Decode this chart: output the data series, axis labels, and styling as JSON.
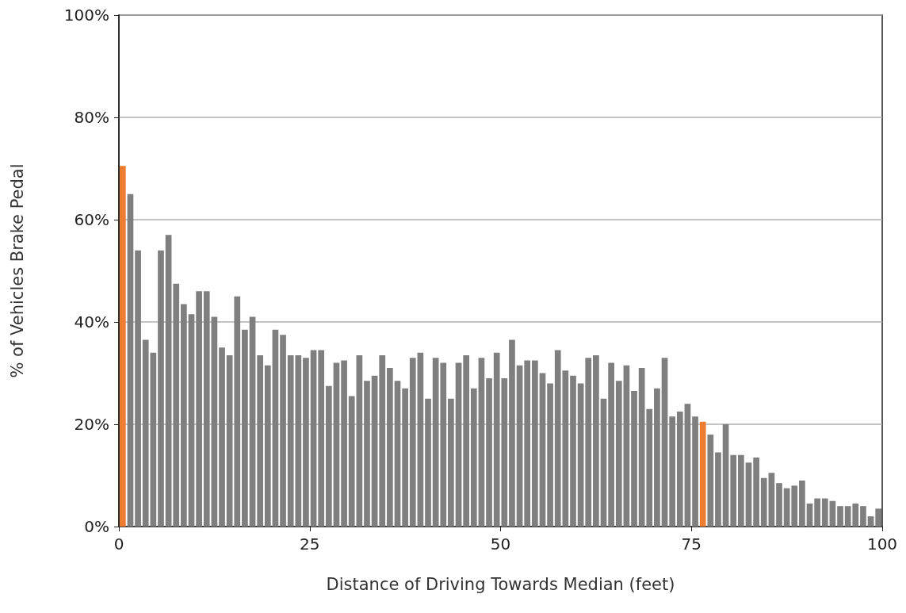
{
  "chart_data": {
    "type": "bar",
    "xlabel": "Distance of Driving Towards Median (feet)",
    "ylabel": "% of Vehicles Brake Pedal",
    "x": [
      0.5,
      1.5,
      2.5,
      3.5,
      4.5,
      5.5,
      6.5,
      7.5,
      8.5,
      9.5,
      10.5,
      11.5,
      12.5,
      13.5,
      14.5,
      15.5,
      16.5,
      17.5,
      18.5,
      19.5,
      20.5,
      21.5,
      22.5,
      23.5,
      24.5,
      25.5,
      26.5,
      27.5,
      28.5,
      29.5,
      30.5,
      31.5,
      32.5,
      33.5,
      34.5,
      35.5,
      36.5,
      37.5,
      38.5,
      39.5,
      40.5,
      41.5,
      42.5,
      43.5,
      44.5,
      45.5,
      46.5,
      47.5,
      48.5,
      49.5,
      50.5,
      51.5,
      52.5,
      53.5,
      54.5,
      55.5,
      56.5,
      57.5,
      58.5,
      59.5,
      60.5,
      61.5,
      62.5,
      63.5,
      64.5,
      65.5,
      66.5,
      67.5,
      68.5,
      69.5,
      70.5,
      71.5,
      72.5,
      73.5,
      74.5,
      75.5,
      76.5,
      77.5,
      78.5,
      79.5,
      80.5,
      81.5,
      82.5,
      83.5,
      84.5,
      85.5,
      86.5,
      87.5,
      88.5,
      89.5,
      90.5,
      91.5,
      92.5,
      93.5,
      94.5,
      95.5,
      96.5,
      97.5,
      98.5,
      99.5
    ],
    "values": [
      70.5,
      65,
      54,
      36.5,
      34,
      54,
      57,
      47.5,
      43.5,
      41.5,
      46,
      46,
      41,
      35,
      33.5,
      45,
      38.5,
      41,
      33.5,
      31.5,
      38.5,
      37.5,
      33.5,
      33.5,
      33,
      34.5,
      34.5,
      27.5,
      32,
      32.5,
      25.5,
      33.5,
      28.5,
      29.5,
      33.5,
      31,
      28.5,
      27,
      33,
      34,
      25,
      33,
      32,
      25,
      32,
      33.5,
      27,
      33,
      29,
      34,
      29,
      36.5,
      31.5,
      32.5,
      32.5,
      30,
      28,
      34.5,
      30.5,
      29.5,
      28,
      33,
      33.5,
      25,
      32,
      28.5,
      31.5,
      26.5,
      31,
      23,
      27,
      33,
      21.5,
      22.5,
      24,
      21.5,
      20.5,
      18,
      14.5,
      20,
      14,
      14,
      12.5,
      13.5,
      9.5,
      10.5,
      8.5,
      7.5,
      8,
      9,
      4.5,
      5.5,
      5.5,
      5,
      4,
      4,
      4.5,
      4,
      2,
      3.5
    ],
    "colors": [
      "#ed7d31",
      "#7f7f7f",
      "#7f7f7f",
      "#7f7f7f",
      "#7f7f7f",
      "#7f7f7f",
      "#7f7f7f",
      "#7f7f7f",
      "#7f7f7f",
      "#7f7f7f",
      "#7f7f7f",
      "#7f7f7f",
      "#7f7f7f",
      "#7f7f7f",
      "#7f7f7f",
      "#7f7f7f",
      "#7f7f7f",
      "#7f7f7f",
      "#7f7f7f",
      "#7f7f7f",
      "#7f7f7f",
      "#7f7f7f",
      "#7f7f7f",
      "#7f7f7f",
      "#7f7f7f",
      "#7f7f7f",
      "#7f7f7f",
      "#7f7f7f",
      "#7f7f7f",
      "#7f7f7f",
      "#7f7f7f",
      "#7f7f7f",
      "#7f7f7f",
      "#7f7f7f",
      "#7f7f7f",
      "#7f7f7f",
      "#7f7f7f",
      "#7f7f7f",
      "#7f7f7f",
      "#7f7f7f",
      "#7f7f7f",
      "#7f7f7f",
      "#7f7f7f",
      "#7f7f7f",
      "#7f7f7f",
      "#7f7f7f",
      "#7f7f7f",
      "#7f7f7f",
      "#7f7f7f",
      "#7f7f7f",
      "#7f7f7f",
      "#7f7f7f",
      "#7f7f7f",
      "#7f7f7f",
      "#7f7f7f",
      "#7f7f7f",
      "#7f7f7f",
      "#7f7f7f",
      "#7f7f7f",
      "#7f7f7f",
      "#7f7f7f",
      "#7f7f7f",
      "#7f7f7f",
      "#7f7f7f",
      "#7f7f7f",
      "#7f7f7f",
      "#7f7f7f",
      "#7f7f7f",
      "#7f7f7f",
      "#7f7f7f",
      "#7f7f7f",
      "#7f7f7f",
      "#7f7f7f",
      "#7f7f7f",
      "#7f7f7f",
      "#7f7f7f",
      "#ed7d31",
      "#7f7f7f",
      "#7f7f7f",
      "#7f7f7f",
      "#7f7f7f",
      "#7f7f7f",
      "#7f7f7f",
      "#7f7f7f",
      "#7f7f7f",
      "#7f7f7f",
      "#7f7f7f",
      "#7f7f7f",
      "#7f7f7f",
      "#7f7f7f",
      "#7f7f7f",
      "#7f7f7f",
      "#7f7f7f",
      "#7f7f7f",
      "#7f7f7f",
      "#7f7f7f",
      "#7f7f7f",
      "#7f7f7f",
      "#7f7f7f",
      "#7f7f7f"
    ],
    "xlim": [
      0,
      100
    ],
    "xticks": [
      0,
      25,
      50,
      75,
      100
    ],
    "ylim": [
      0,
      100
    ],
    "yticks": [
      {
        "value": 0,
        "label": "0%"
      },
      {
        "value": 20,
        "label": "20%"
      },
      {
        "value": 40,
        "label": "40%"
      },
      {
        "value": 60,
        "label": "60%"
      },
      {
        "value": 80,
        "label": "80%"
      },
      {
        "value": 100,
        "label": "100%"
      }
    ],
    "grid": "y"
  }
}
